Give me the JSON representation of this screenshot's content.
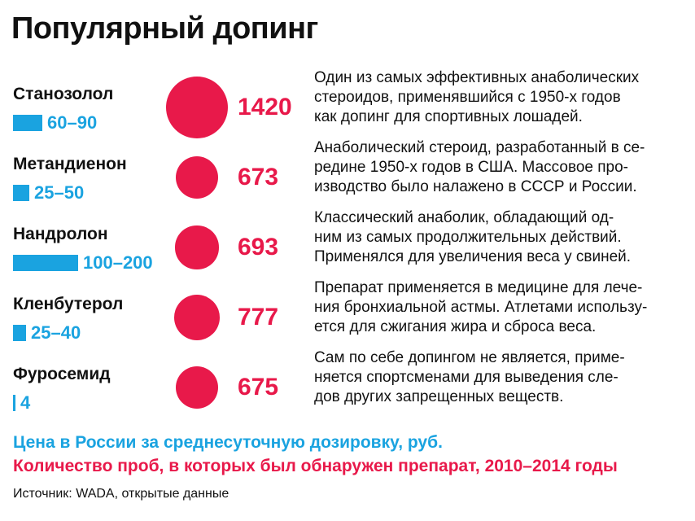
{
  "colors": {
    "price": "#1aa3e0",
    "count": "#e8194a",
    "text": "#111111"
  },
  "title": "Популярный допинг",
  "chart_data": {
    "type": "table",
    "title": "Популярный допинг",
    "series": [
      {
        "name": "Цена в России за среднесуточную дозировку, руб.",
        "kind": "bar-range"
      },
      {
        "name": "Количество проб, в которых был обнаружен препарат, 2010–2014 годы",
        "kind": "bubble"
      }
    ],
    "rows": [
      {
        "name": "Станозолол",
        "price_label": "60–90",
        "price_max": 90,
        "count": 1420,
        "count_label": "1420",
        "description": [
          "Один из самых эффективных анаболических",
          "стероидов, применявшийся с 1950-х годов",
          "как допинг для спортивных лошадей."
        ]
      },
      {
        "name": "Метандиенон",
        "price_label": "25–50",
        "price_max": 50,
        "count": 673,
        "count_label": "673",
        "description": [
          "Анаболический стероид, разработанный в се-",
          "редине 1950-х годов в США. Массовое про-",
          "изводство было налажено в СССР и России."
        ]
      },
      {
        "name": "Нандролон",
        "price_label": "100–200",
        "price_max": 200,
        "count": 693,
        "count_label": "693",
        "description": [
          "Классический анаболик, обладающий од-",
          "ним из самых продолжительных действий.",
          "Применялся для увеличения веса у свиней."
        ]
      },
      {
        "name": "Кленбутерол",
        "price_label": "25–40",
        "price_max": 40,
        "count": 777,
        "count_label": "777",
        "description": [
          "Препарат применяется в медицине для лече-",
          "ния бронхиальной астмы. Атлетами использу-",
          "ется для сжигания жира и сброса веса."
        ]
      },
      {
        "name": "Фуросемид",
        "price_label": "4",
        "price_max": 4,
        "count": 675,
        "count_label": "675",
        "description": [
          "Сам по себе допингом не является, приме-",
          "няется спортсменами для выведения сле-",
          "дов других запрещенных веществ."
        ]
      }
    ]
  },
  "legend": {
    "price": "Цена в России за среднесуточную дозировку, руб.",
    "count": "Количество проб, в которых был обнаружен препарат, 2010–2014 годы"
  },
  "source": "Источник: WADA, открытые данные"
}
